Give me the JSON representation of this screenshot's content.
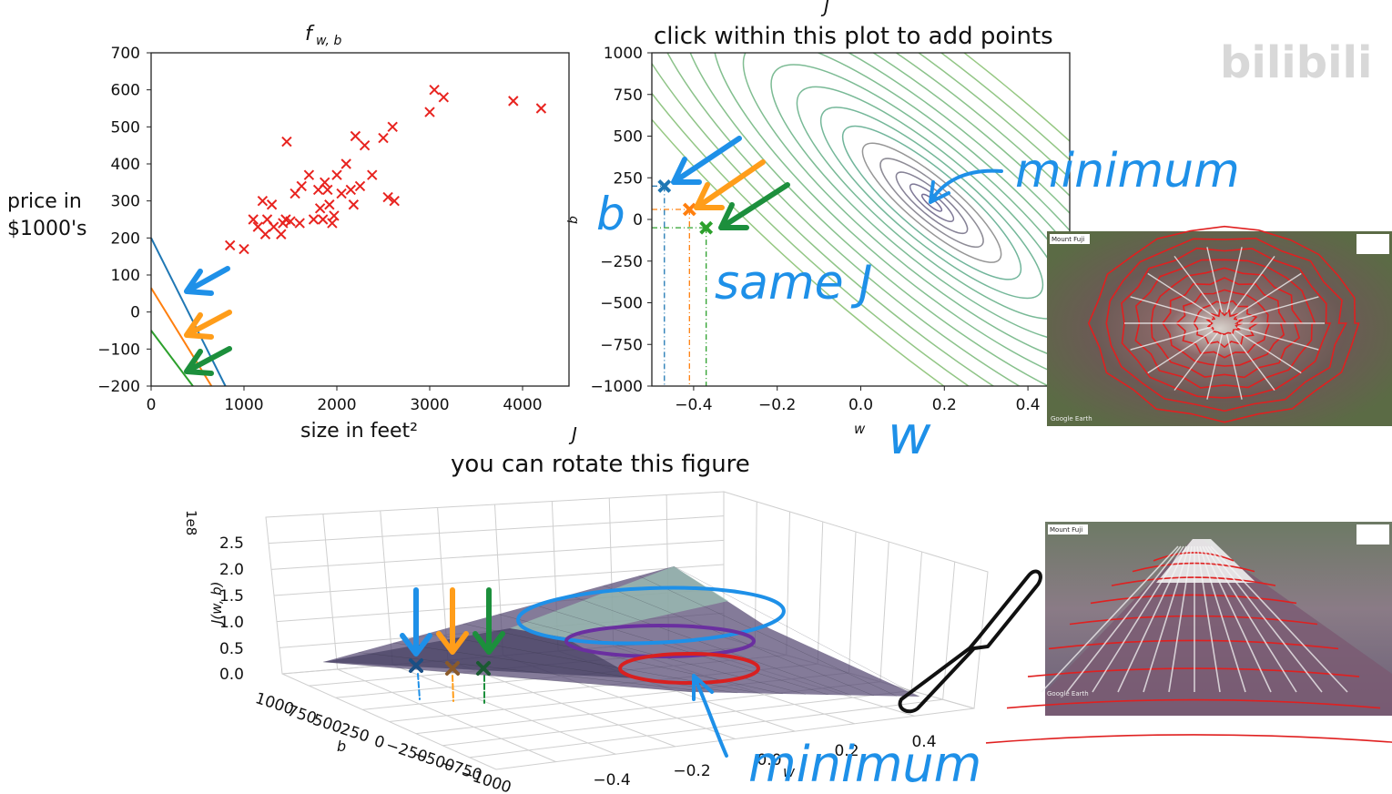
{
  "watermark": {
    "text": "bilibili"
  },
  "scatter_panel": {
    "title": "f",
    "title_sub": "w, b",
    "ylabel_line1": "price in",
    "ylabel_line2": "$1000's",
    "xlabel": "size in feet²",
    "xticks": [
      "0",
      "1000",
      "2000",
      "3000",
      "4000"
    ],
    "yticks": [
      "700",
      "600",
      "500",
      "400",
      "300",
      "200",
      "100",
      "0",
      "−100",
      "−200"
    ],
    "colors": {
      "points": "#e8231f",
      "blue": "#1f77b4",
      "orange": "#ff7f0e",
      "green": "#2ca02c"
    }
  },
  "contour_panel": {
    "top_letter": "J",
    "title": "click within this plot to add points",
    "ylabel": "b",
    "xlabel": "w",
    "xticks": [
      "−0.4",
      "−0.2",
      "0.0",
      "0.2",
      "0.4"
    ],
    "yticks": [
      "1000",
      "750",
      "500",
      "250",
      "0",
      "−250",
      "−500",
      "−750",
      "−1000"
    ],
    "annotations": {
      "minimum": "minimum",
      "same_j": "same J",
      "b": "b",
      "w": "w"
    }
  },
  "surface_panel": {
    "top_letter": "J",
    "title": "you can rotate this figure",
    "zlabel": "J(w, b)",
    "zscale": "1e8",
    "zticks": [
      "2.5",
      "2.0",
      "1.5",
      "1.0",
      "0.5",
      "0.0"
    ],
    "bticks": [
      "1000",
      "750",
      "500",
      "250",
      "0",
      "−250",
      "−500",
      "−750",
      "−1000"
    ],
    "blabel": "b",
    "wticks": [
      "−0.4",
      "−0.2",
      "0.0",
      "0.2",
      "0.4"
    ],
    "wlabel": "w",
    "annotation": "minimum"
  },
  "map_panels": {
    "top": {
      "title": "Mount Fuji",
      "footer": "Google Earth"
    },
    "bottom": {
      "title": "Mount Fuji",
      "footer": "Google Earth"
    }
  },
  "chart_data": [
    {
      "type": "scatter",
      "title": "f w,b",
      "xlabel": "size in feet²",
      "ylabel": "price in $1000's",
      "xlim": [
        0,
        4500
      ],
      "ylim": [
        -200,
        700
      ],
      "points": [
        [
          850,
          180
        ],
        [
          1000,
          170
        ],
        [
          1100,
          250
        ],
        [
          1150,
          230
        ],
        [
          1200,
          300
        ],
        [
          1230,
          210
        ],
        [
          1250,
          250
        ],
        [
          1300,
          290
        ],
        [
          1320,
          230
        ],
        [
          1400,
          210
        ],
        [
          1420,
          240
        ],
        [
          1450,
          250
        ],
        [
          1460,
          460
        ],
        [
          1500,
          245
        ],
        [
          1550,
          320
        ],
        [
          1600,
          240
        ],
        [
          1620,
          340
        ],
        [
          1700,
          370
        ],
        [
          1750,
          250
        ],
        [
          1800,
          330
        ],
        [
          1820,
          280
        ],
        [
          1850,
          250
        ],
        [
          1870,
          350
        ],
        [
          1900,
          330
        ],
        [
          1920,
          290
        ],
        [
          1950,
          240
        ],
        [
          1970,
          260
        ],
        [
          2000,
          370
        ],
        [
          2050,
          320
        ],
        [
          2100,
          400
        ],
        [
          2150,
          330
        ],
        [
          2180,
          290
        ],
        [
          2200,
          475
        ],
        [
          2250,
          340
        ],
        [
          2300,
          450
        ],
        [
          2380,
          370
        ],
        [
          2500,
          470
        ],
        [
          2550,
          310
        ],
        [
          2600,
          500
        ],
        [
          2620,
          300
        ],
        [
          3000,
          540
        ],
        [
          3050,
          600
        ],
        [
          3150,
          580
        ],
        [
          3900,
          570
        ],
        [
          4200,
          550
        ]
      ],
      "lines": [
        {
          "name": "blue",
          "x": [
            0,
            800
          ],
          "y": [
            200,
            -200
          ]
        },
        {
          "name": "orange",
          "x": [
            0,
            650
          ],
          "y": [
            65,
            -200
          ]
        },
        {
          "name": "green",
          "x": [
            0,
            450
          ],
          "y": [
            -50,
            -200
          ]
        }
      ]
    },
    {
      "type": "contour",
      "title": "click within this plot to add points",
      "xlabel": "w",
      "ylabel": "b",
      "xlim": [
        -0.5,
        0.5
      ],
      "ylim": [
        -1000,
        1000
      ],
      "minimum": {
        "w": 0.17,
        "b": 100
      },
      "markers": [
        {
          "name": "blue",
          "w": -0.47,
          "b": 200
        },
        {
          "name": "orange",
          "w": -0.41,
          "b": 60
        },
        {
          "name": "green",
          "w": -0.37,
          "b": -50
        }
      ]
    },
    {
      "type": "surface",
      "title": "you can rotate this figure",
      "zlabel": "J(w, b)",
      "zscale": "1e8",
      "xlim_w": [
        -0.5,
        0.5
      ],
      "ylim_b": [
        -1000,
        1000
      ],
      "zlim": [
        0,
        2.5
      ]
    }
  ]
}
